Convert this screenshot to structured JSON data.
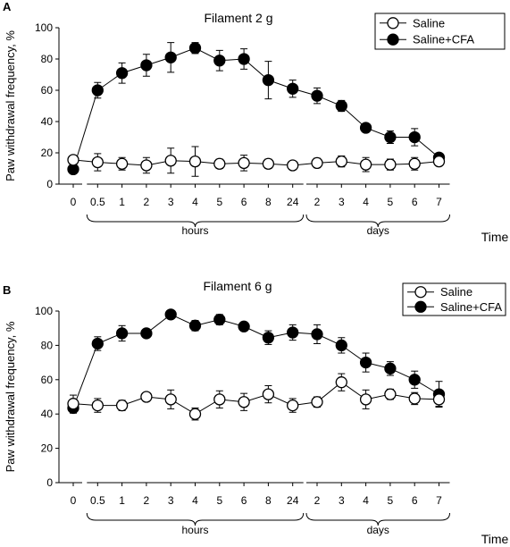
{
  "chart_data": [
    {
      "type": "line",
      "panel_label": "A",
      "title": "Filament 2 g",
      "ylabel": "Paw withdrawal frequency, %",
      "xlabel": "Time",
      "ylim": [
        0,
        100
      ],
      "yticks": [
        0,
        20,
        40,
        60,
        80,
        100
      ],
      "categories": [
        "0",
        "0.5",
        "1",
        "2",
        "3",
        "4",
        "5",
        "6",
        "8",
        "24",
        "2",
        "3",
        "4",
        "5",
        "6",
        "7"
      ],
      "groups": [
        {
          "label": "hours",
          "from": 1,
          "to": 9
        },
        {
          "label": "days",
          "from": 10,
          "to": 15
        }
      ],
      "legend": {
        "position": "top-right"
      },
      "series": [
        {
          "name": "Saline",
          "marker": "open-circle",
          "values": [
            15.5,
            14,
            13,
            12,
            15,
            14.5,
            13,
            13.5,
            13,
            12,
            13.5,
            14.5,
            12.5,
            12.5,
            13,
            14.5
          ],
          "errors": [
            0,
            5.5,
            4,
            5,
            8,
            9.5,
            3,
            5,
            3,
            2,
            3,
            3.5,
            4.5,
            3.5,
            4,
            2
          ]
        },
        {
          "name": "Saline+CFA",
          "marker": "filled-circle",
          "values": [
            9.5,
            60,
            71,
            76,
            81,
            87,
            79,
            80,
            66.5,
            61,
            56.5,
            50,
            36,
            30,
            30,
            17
          ],
          "errors": [
            0,
            5,
            6.5,
            7,
            9.5,
            3.5,
            6.5,
            6.5,
            12,
            5.5,
            5,
            3.5,
            2,
            4,
            5.5,
            2
          ]
        }
      ]
    },
    {
      "type": "line",
      "panel_label": "B",
      "title": "Filament 6 g",
      "ylabel": "Paw withdrawal frequency, %",
      "xlabel": "Time",
      "ylim": [
        0,
        100
      ],
      "yticks": [
        0,
        20,
        40,
        60,
        80,
        100
      ],
      "categories": [
        "0",
        "0.5",
        "1",
        "2",
        "3",
        "4",
        "5",
        "6",
        "8",
        "24",
        "2",
        "3",
        "4",
        "5",
        "6",
        "7"
      ],
      "groups": [
        {
          "label": "hours",
          "from": 1,
          "to": 9
        },
        {
          "label": "days",
          "from": 10,
          "to": 15
        }
      ],
      "legend": {
        "position": "top-right"
      },
      "series": [
        {
          "name": "Saline",
          "marker": "open-circle",
          "values": [
            46,
            45,
            45,
            50,
            48.5,
            40,
            48.5,
            47,
            51.5,
            45,
            47,
            58.5,
            48.5,
            51.5,
            49,
            48.5
          ],
          "errors": [
            5,
            4,
            3,
            2,
            5.5,
            3.5,
            5,
            5,
            5,
            4,
            3,
            5,
            5.5,
            3,
            3.5,
            4
          ]
        },
        {
          "name": "Saline+CFA",
          "marker": "filled-circle",
          "values": [
            43.5,
            81,
            87,
            87,
            98,
            91.5,
            95,
            91,
            84.5,
            87.5,
            86.5,
            80,
            70,
            66.5,
            60,
            51.5
          ],
          "errors": [
            3,
            4,
            4.5,
            2,
            1.5,
            3,
            3,
            2,
            4,
            4.5,
            5.5,
            4.5,
            5.5,
            4,
            5,
            7.5
          ]
        }
      ]
    }
  ]
}
